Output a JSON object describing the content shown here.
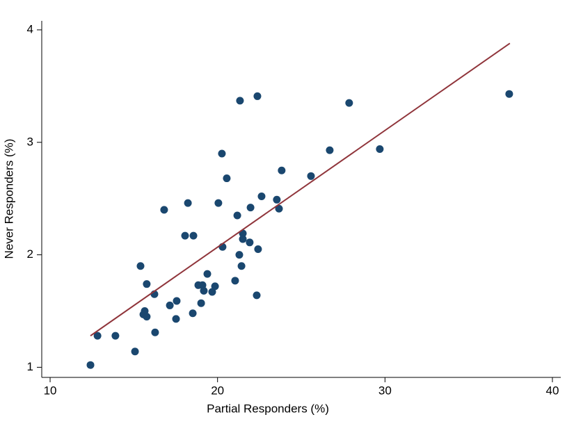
{
  "chart_data": {
    "type": "scatter",
    "xlabel": "Partial Responders (%)",
    "ylabel": "Never Responders (%)",
    "xlim": [
      9.5,
      40.5
    ],
    "ylim": [
      0.91,
      4.08
    ],
    "xticks": [
      10,
      20,
      30,
      40
    ],
    "yticks": [
      1,
      2,
      3,
      4
    ],
    "series": [
      {
        "color": "#1a476f",
        "x": [
          12.41,
          12.83,
          13.9,
          15.07,
          15.4,
          15.57,
          15.65,
          15.77,
          15.77,
          16.23,
          16.27,
          16.81,
          17.15,
          17.56,
          17.52,
          18.06,
          18.23,
          18.52,
          18.56,
          18.85,
          19.1,
          19.02,
          19.18,
          19.39,
          19.68,
          19.85,
          20.05,
          20.26,
          20.3,
          20.55,
          21.05,
          21.18,
          21.3,
          21.34,
          21.43,
          21.51,
          21.51,
          21.92,
          21.97,
          22.34,
          22.38,
          22.42,
          22.63,
          23.54,
          23.67,
          23.83,
          25.58,
          26.7,
          27.86,
          29.69,
          37.42
        ],
        "values": [
          1.02,
          1.28,
          1.28,
          1.14,
          1.9,
          1.47,
          1.5,
          1.45,
          1.74,
          1.65,
          1.31,
          2.4,
          1.55,
          1.59,
          1.43,
          2.17,
          2.46,
          1.48,
          2.17,
          1.73,
          1.73,
          1.57,
          1.68,
          1.83,
          1.67,
          1.72,
          2.46,
          2.9,
          2.07,
          2.68,
          1.77,
          2.35,
          2.0,
          3.37,
          1.9,
          2.19,
          2.14,
          2.11,
          2.42,
          1.64,
          3.41,
          2.05,
          2.52,
          2.49,
          2.41,
          2.75,
          2.7,
          2.93,
          3.35,
          2.94,
          3.43
        ]
      }
    ],
    "fit_line": {
      "color": "#90353b",
      "x": [
        12.41,
        37.46
      ],
      "values": [
        1.28,
        3.88
      ]
    }
  }
}
